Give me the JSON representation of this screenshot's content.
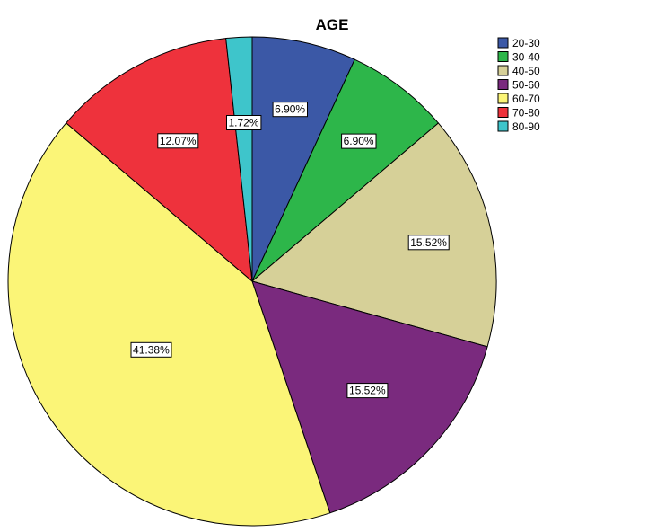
{
  "chart_data": {
    "type": "pie",
    "title": "AGE",
    "categories": [
      "20-30",
      "30-40",
      "40-50",
      "50-60",
      "60-70",
      "70-80",
      "80-90"
    ],
    "values": [
      6.9,
      6.9,
      15.52,
      15.52,
      41.38,
      12.07,
      1.72
    ],
    "data_labels": [
      "6.90%",
      "6.90%",
      "15.52%",
      "15.52%",
      "41.38%",
      "12.07%",
      "1.72%"
    ],
    "colors": [
      "#3b58a6",
      "#2db64a",
      "#d6d098",
      "#7a2a7e",
      "#fbf577",
      "#ee323c",
      "#3ec5cb"
    ],
    "start_angle": "12 o'clock",
    "direction": "clockwise",
    "legend_position": "top-right"
  }
}
